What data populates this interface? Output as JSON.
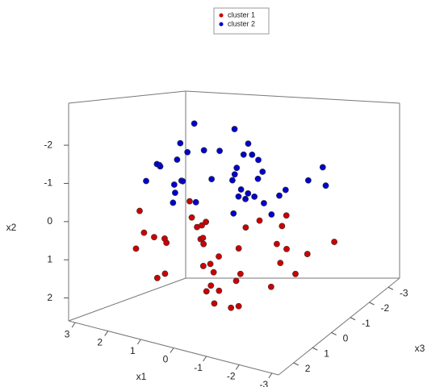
{
  "chart_data": {
    "type": "scatter3d",
    "xlabel": "x1",
    "ylabel": "x2",
    "zlabel": "x3",
    "xlim": [
      3.2,
      -3.2
    ],
    "xticks": [
      3,
      2,
      1,
      0,
      -1,
      -2,
      -3
    ],
    "ylim": [
      2.6,
      -3.1
    ],
    "yticks": [
      2,
      1,
      0,
      -1,
      -2
    ],
    "zlim": [
      2.8,
      -3.6
    ],
    "zticks": [
      2,
      1,
      0,
      -1,
      -2,
      -3
    ],
    "legend": "top",
    "series": [
      {
        "name": "cluster 1",
        "color": "#cc0000",
        "x": [
          0.5,
          -1.2,
          1.8,
          0.3,
          -0.7,
          2.1,
          -1.9,
          0.9,
          -0.2,
          1.3,
          -0.5,
          0.1,
          2.6,
          -1.4,
          0.7,
          -2.3,
          1.1,
          -0.9,
          0.4,
          1.6,
          -0.1,
          -1.6,
          0.8,
          2.2,
          -0.4,
          1.4,
          -1.1,
          0.2,
          -2.0,
          1.0,
          0.6,
          -0.8,
          1.9,
          -0.3,
          0.0,
          -1.3,
          2.4,
          -0.6,
          1.2,
          -2.6
        ],
        "y": [
          0.6,
          1.2,
          0.3,
          1.8,
          0.9,
          -0.2,
          0.5,
          1.4,
          0.1,
          0.8,
          2.1,
          0.4,
          1.0,
          -0.3,
          1.6,
          0.7,
          0.2,
          1.1,
          2.3,
          0.5,
          0.9,
          1.5,
          -0.1,
          0.8,
          1.3,
          0.6,
          0.0,
          1.9,
          1.2,
          0.3,
          1.0,
          0.4,
          1.7,
          0.7,
          2.5,
          0.2,
          0.9,
          1.4,
          -0.4,
          0.6
        ],
        "z": [
          0.3,
          -0.8,
          1.2,
          0.5,
          -1.5,
          0.9,
          0.1,
          -0.4,
          1.7,
          -1.1,
          0.6,
          -2.0,
          0.2,
          1.4,
          -0.6,
          -0.3,
          1.9,
          0.8,
          -0.1,
          -1.8,
          1.0,
          -0.9,
          0.4,
          -2.4,
          1.5,
          0.7,
          -1.3,
          0.0,
          1.1,
          -0.5,
          2.2,
          -1.6,
          0.3,
          0.9,
          -0.7,
          1.6,
          -1.0,
          0.5,
          -0.2,
          -1.2
        ]
      },
      {
        "name": "cluster 2",
        "color": "#0000cc",
        "x": [
          0.2,
          -1.0,
          1.5,
          -0.4,
          0.8,
          -1.7,
          0.3,
          1.1,
          -0.6,
          2.0,
          -0.1,
          -1.3,
          0.6,
          1.7,
          -0.8,
          0.0,
          -2.1,
          0.9,
          1.3,
          -0.3,
          0.5,
          -1.5,
          2.3,
          -0.9,
          0.4,
          1.0,
          -0.2,
          -1.1,
          0.7,
          1.8,
          -0.5,
          0.1,
          -2.4,
          1.4,
          -0.7,
          0.6,
          -1.8,
          1.2,
          0.3,
          -0.1
        ],
        "y": [
          -1.2,
          -0.6,
          -1.5,
          -2.1,
          -0.9,
          -1.0,
          -0.3,
          -1.8,
          -1.3,
          -0.7,
          -2.5,
          -1.1,
          -0.5,
          -1.4,
          -1.9,
          -0.8,
          -1.2,
          -0.2,
          -1.6,
          -1.0,
          -2.7,
          -0.4,
          -1.3,
          -1.7,
          -0.9,
          -1.1,
          -1.5,
          -0.6,
          -2.2,
          -0.8,
          -1.4,
          -0.1,
          -1.0,
          -1.2,
          -0.7,
          -1.9,
          -1.3,
          -0.5,
          -1.6,
          -2.0
        ],
        "z": [
          0.4,
          -1.1,
          0.9,
          -0.5,
          1.3,
          -0.2,
          -1.6,
          0.1,
          0.7,
          -0.8,
          -0.3,
          1.1,
          -1.9,
          0.5,
          0.0,
          1.6,
          -0.7,
          -2.3,
          0.3,
          -1.2,
          0.8,
          0.2,
          -0.4,
          1.0,
          -2.7,
          0.6,
          -1.4,
          -0.1,
          1.2,
          -0.9,
          0.4,
          -0.6,
          -1.1,
          1.8,
          -0.3,
          0.1,
          -2.0,
          0.7,
          -1.5,
          0.5
        ]
      }
    ]
  }
}
